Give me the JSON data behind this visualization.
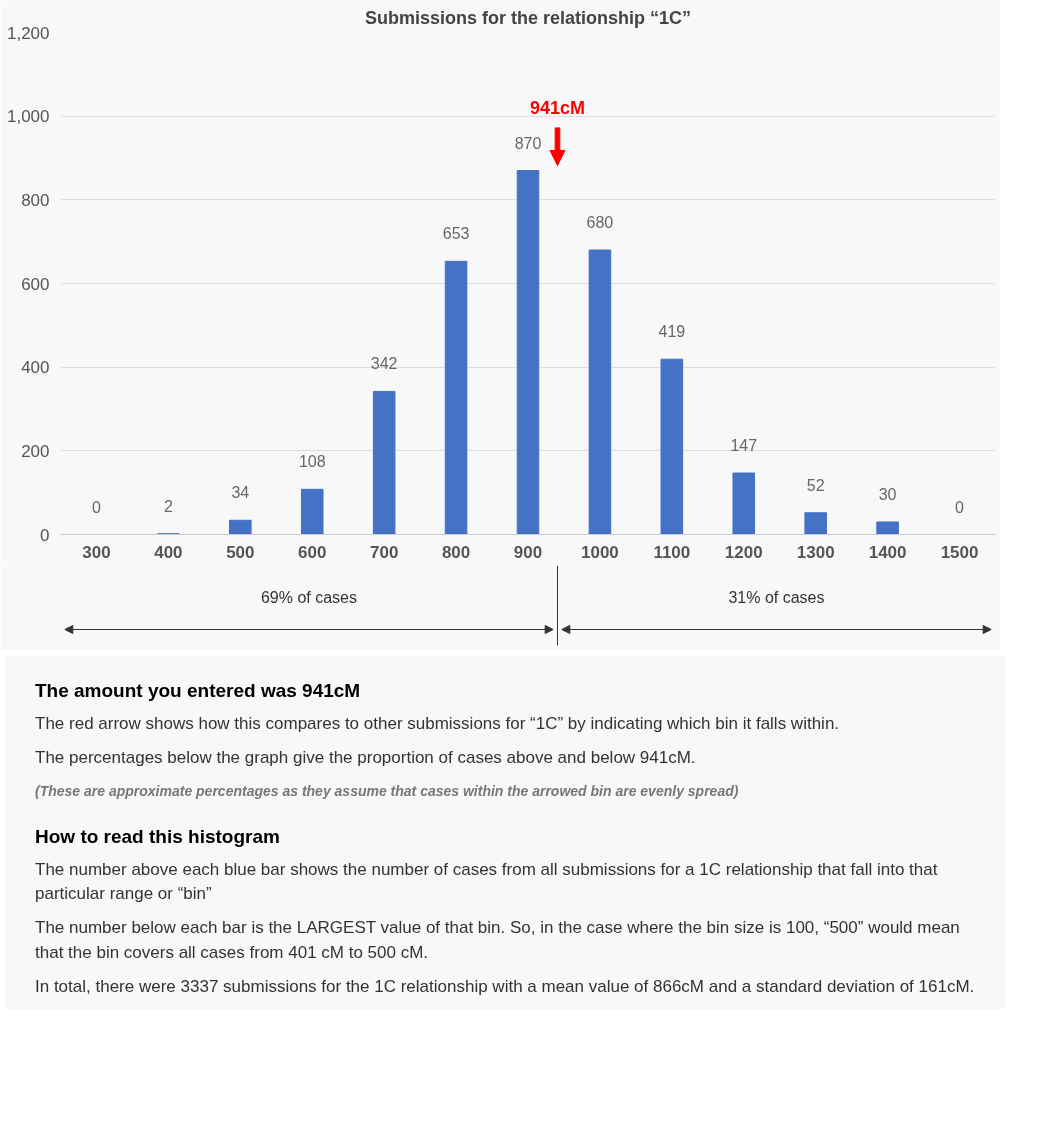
{
  "chart_data": {
    "type": "bar",
    "title": "Submissions for the relationship “1C”",
    "x": [
      300,
      400,
      500,
      600,
      700,
      800,
      900,
      1000,
      1100,
      1200,
      1300,
      1400,
      1500
    ],
    "values": [
      0,
      2,
      34,
      108,
      342,
      653,
      870,
      680,
      419,
      147,
      52,
      30,
      0
    ],
    "color": "#4472c4",
    "data_labels": true,
    "grid": "y",
    "xlim": [
      250,
      1550
    ],
    "xticks": [
      300,
      400,
      500,
      600,
      700,
      800,
      900,
      1000,
      1100,
      1200,
      1300,
      1400,
      1500
    ],
    "ylim": [
      0,
      1200
    ],
    "yticks": [
      0,
      200,
      400,
      600,
      800,
      {
        "value": 1000,
        "label": "1,000"
      },
      {
        "value": 1200,
        "label": "1,200"
      }
    ],
    "ref_lines": [
      {
        "axis": "x",
        "value": 941,
        "label": "941cM",
        "color": "#ff0000"
      }
    ],
    "annotations": [
      "69% of cases",
      "31% of cases",
      "The amount you entered was 941cM",
      "The red arrow shows how this compares to other submissions for “1C” by indicating which bin it falls within.",
      "The percentages below the graph give the proportion of cases above and below 941cM.",
      "(These are approximate percentages as they assume that cases within the arrowed bin are evenly spread)",
      "How to read this histogram",
      "The number above each blue bar shows the number of cases from all submissions for a 1C relationship that fall into that particular range or “bin”",
      "The number below each bar is the LARGEST value of that bin. So, in the case where the bin size is 100, “500” would mean that the bin covers all cases from 401 cM to 500 cM.",
      "In total, there were 3337 submissions for the 1C relationship with a mean value of 866cM and a standard deviation of 161cM."
    ]
  }
}
